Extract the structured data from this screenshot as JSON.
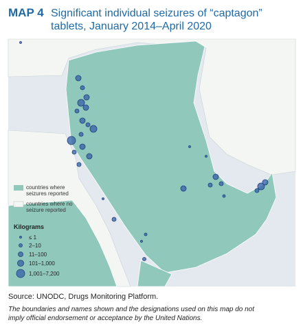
{
  "header": {
    "label": "MAP 4",
    "title_line1": "Significant individual seizures of “captagon”",
    "title_line2": "tablets, January 2014–April 2020"
  },
  "legend": {
    "reported": [
      "countries where",
      "seizures reported"
    ],
    "not_reported": [
      "countries where no",
      "seizure reported"
    ],
    "size_title": "Kilograms",
    "sizes": [
      "≤ 1",
      "2–10",
      "11–100",
      "101–1,000",
      "1,001–7,200"
    ]
  },
  "footer": {
    "source": "Source: UNODC, Drugs Monitoring Platform.",
    "note": [
      "The boundaries and names shown and the designations used on this map do not",
      "imply official endorsement or acceptance by the United Nations."
    ]
  }
}
